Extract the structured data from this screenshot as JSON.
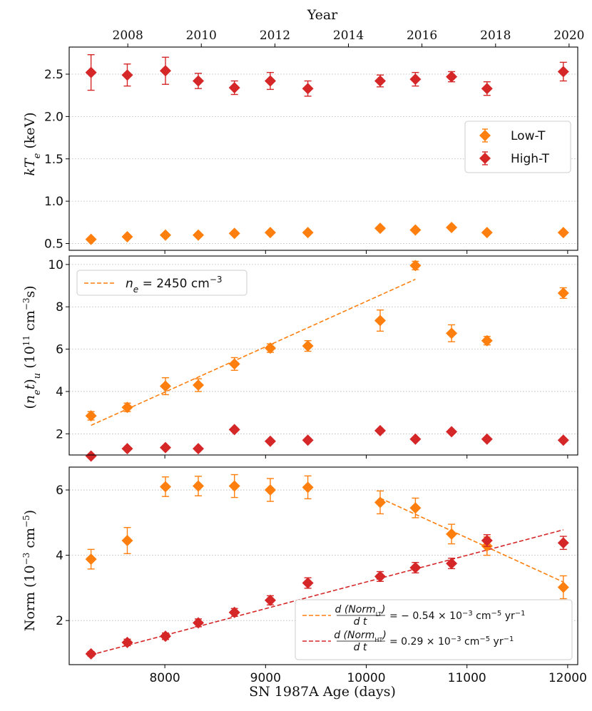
{
  "colors": {
    "low": "#ff7f0e",
    "high": "#d62728"
  },
  "chart_data": {
    "type": "scatter",
    "figure": {
      "xlabel": "SN 1987A Age (days)",
      "top_xlabel": "Year",
      "xlim": [
        7050,
        12100
      ],
      "x_ticks": [
        8000,
        9000,
        10000,
        11000,
        12000
      ],
      "top_ticks": [
        {
          "label": "2008",
          "day": 7632
        },
        {
          "label": "2010",
          "day": 8362
        },
        {
          "label": "2012",
          "day": 9093
        },
        {
          "label": "2014",
          "day": 9823
        },
        {
          "label": "2016",
          "day": 10553
        },
        {
          "label": "2018",
          "day": 11284
        },
        {
          "label": "2020",
          "day": 12014
        }
      ],
      "x": [
        7267,
        7627,
        8006,
        8332,
        8691,
        9047,
        9420,
        10138,
        10488,
        10847,
        11199,
        11957
      ]
    },
    "panels": [
      {
        "id": "kTe",
        "ylabel": "kT_e (keV)",
        "ylim": [
          0.42,
          2.82
        ],
        "y_ticks": [
          0.5,
          1.0,
          1.5,
          2.0,
          2.5
        ],
        "y_tick_labels": [
          "0.5",
          "1.0",
          "1.5",
          "2.0",
          "2.5"
        ],
        "series": [
          {
            "name": "Low-T",
            "key": "low",
            "x": [
              7267,
              7627,
              8006,
              8332,
              8691,
              9047,
              9420,
              10138,
              10488,
              10847,
              11199,
              11957
            ],
            "values": [
              0.55,
              0.58,
              0.6,
              0.6,
              0.62,
              0.63,
              0.63,
              0.68,
              0.66,
              0.69,
              0.63,
              0.63
            ],
            "err": [
              0.02,
              0.02,
              0.02,
              0.02,
              0.02,
              0.02,
              0.02,
              0.02,
              0.02,
              0.02,
              0.02,
              0.02
            ]
          },
          {
            "name": "High-T",
            "key": "high",
            "x": [
              7267,
              7627,
              8006,
              8332,
              8691,
              9047,
              9420,
              10138,
              10488,
              10847,
              11199,
              11957
            ],
            "values": [
              2.52,
              2.49,
              2.54,
              2.42,
              2.34,
              2.42,
              2.33,
              2.42,
              2.44,
              2.47,
              2.33,
              2.53
            ],
            "err": [
              0.21,
              0.13,
              0.16,
              0.09,
              0.08,
              0.1,
              0.09,
              0.07,
              0.08,
              0.06,
              0.08,
              0.11
            ]
          }
        ],
        "legend": {
          "position": "right",
          "entries": [
            "Low-T",
            "High-T"
          ]
        }
      },
      {
        "id": "net",
        "ylabel": "(n_e t)_u (10^11 cm^-3 s)",
        "ylim": [
          1.0,
          10.4
        ],
        "y_ticks": [
          2,
          4,
          6,
          8,
          10
        ],
        "y_tick_labels": [
          "2",
          "4",
          "6",
          "8",
          "10"
        ],
        "series": [
          {
            "name": "Low-T",
            "key": "low",
            "x": [
              7267,
              7627,
              8006,
              8332,
              8691,
              9047,
              9420,
              10138,
              10488,
              10847,
              11199,
              11957
            ],
            "values": [
              2.85,
              3.25,
              4.25,
              4.3,
              5.3,
              6.05,
              6.15,
              7.35,
              9.95,
              6.75,
              6.4,
              8.65
            ],
            "err": [
              0.2,
              0.2,
              0.4,
              0.3,
              0.3,
              0.2,
              0.25,
              0.5,
              0.2,
              0.4,
              0.2,
              0.25
            ]
          },
          {
            "name": "High-T",
            "key": "high",
            "x": [
              7267,
              7627,
              8006,
              8332,
              8691,
              9047,
              9420,
              10138,
              10488,
              10847,
              11199,
              11957
            ],
            "values": [
              0.95,
              1.3,
              1.35,
              1.3,
              2.2,
              1.65,
              1.7,
              2.15,
              1.75,
              2.1,
              1.75,
              1.7
            ],
            "err": [
              0.05,
              0.05,
              0.05,
              0.05,
              0.05,
              0.05,
              0.05,
              0.05,
              0.05,
              0.05,
              0.05,
              0.05
            ]
          }
        ],
        "fit": {
          "key": "low",
          "x": [
            7267,
            10488
          ],
          "y": [
            2.4,
            9.3
          ]
        },
        "legend": {
          "position": "top-left",
          "entries": [
            "n_e = 2450 cm^-3"
          ]
        }
      },
      {
        "id": "norm",
        "ylabel": "Norm (10^-3 cm^-5)",
        "ylim": [
          0.65,
          6.7
        ],
        "y_ticks": [
          2,
          4,
          6
        ],
        "y_tick_labels": [
          "2",
          "4",
          "6"
        ],
        "series": [
          {
            "name": "Low-T",
            "key": "low",
            "x": [
              7267,
              7627,
              8006,
              8332,
              8691,
              9047,
              9420,
              10138,
              10488,
              10847,
              11199,
              11957
            ],
            "values": [
              3.88,
              4.45,
              6.1,
              6.12,
              6.12,
              6.0,
              6.08,
              5.62,
              5.45,
              4.65,
              4.28,
              3.02
            ],
            "err": [
              0.3,
              0.4,
              0.3,
              0.3,
              0.35,
              0.35,
              0.35,
              0.35,
              0.3,
              0.3,
              0.28,
              0.35
            ]
          },
          {
            "name": "High-T",
            "key": "high",
            "x": [
              7267,
              7627,
              8006,
              8332,
              8691,
              9047,
              9420,
              10138,
              10488,
              10847,
              11199,
              11957
            ],
            "values": [
              0.98,
              1.33,
              1.52,
              1.93,
              2.25,
              2.62,
              3.15,
              3.35,
              3.62,
              3.75,
              4.45,
              4.38
            ],
            "err": [
              0.07,
              0.1,
              0.1,
              0.12,
              0.12,
              0.14,
              0.16,
              0.15,
              0.16,
              0.16,
              0.18,
              0.2
            ]
          }
        ],
        "fits": [
          {
            "key": "low",
            "x": [
              10138,
              11957
            ],
            "y": [
              5.75,
              3.18
            ]
          },
          {
            "key": "high",
            "x": [
              7267,
              11957
            ],
            "y": [
              0.95,
              4.78
            ]
          }
        ],
        "legend": {
          "position": "bottom-right",
          "entries": [
            {
              "key": "low",
              "num": "d (Norm",
              "sub": "LT",
              "den": "d t",
              "rhs": "= − 0.54 × 10",
              "exp": "−3",
              "unit": " cm",
              "uexp": "−5",
              "unit2": " yr",
              "yexp": "−1"
            },
            {
              "key": "high",
              "num": "d (Norm",
              "sub": "HT",
              "den": "d t",
              "rhs": "= 0.29 × 10",
              "exp": "−3",
              "unit": " cm",
              "uexp": "−5",
              "unit2": " yr",
              "yexp": "−1"
            }
          ]
        }
      }
    ]
  }
}
